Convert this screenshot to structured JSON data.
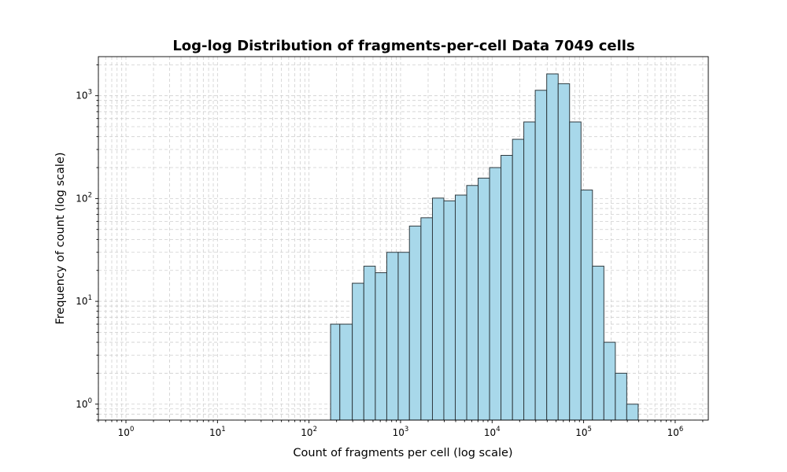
{
  "chart_data": {
    "type": "bar",
    "title": "Log-log Distribution of fragments-per-cell Data 7049 cells",
    "xlabel": "Count of fragments per cell (log scale)",
    "ylabel": "Frequency of count (log scale)",
    "xscale": "log",
    "yscale": "log",
    "xlim": [
      0.5,
      2300000
    ],
    "ylim": [
      0.7,
      2400
    ],
    "grid": true,
    "bar_color": "#a8d8ea",
    "edge_color": "#2f3a3f",
    "x_ticks": [
      {
        "value": 1,
        "base": "10",
        "exp": "0"
      },
      {
        "value": 10,
        "base": "10",
        "exp": "1"
      },
      {
        "value": 100,
        "base": "10",
        "exp": "2"
      },
      {
        "value": 1000,
        "base": "10",
        "exp": "3"
      },
      {
        "value": 10000,
        "base": "10",
        "exp": "4"
      },
      {
        "value": 100000,
        "base": "10",
        "exp": "5"
      },
      {
        "value": 1000000,
        "base": "10",
        "exp": "6"
      }
    ],
    "y_ticks": [
      {
        "value": 1,
        "base": "10",
        "exp": "0"
      },
      {
        "value": 10,
        "base": "10",
        "exp": "1"
      },
      {
        "value": 100,
        "base": "10",
        "exp": "2"
      },
      {
        "value": 1000,
        "base": "10",
        "exp": "3"
      }
    ],
    "bins": [
      {
        "x0": 172,
        "x1": 217,
        "count": 6
      },
      {
        "x0": 217,
        "x1": 297,
        "count": 6
      },
      {
        "x0": 297,
        "x1": 397,
        "count": 15
      },
      {
        "x0": 397,
        "x1": 530,
        "count": 22
      },
      {
        "x0": 530,
        "x1": 707,
        "count": 19
      },
      {
        "x0": 707,
        "x1": 942,
        "count": 30
      },
      {
        "x0": 942,
        "x1": 1250,
        "count": 30
      },
      {
        "x0": 1250,
        "x1": 1670,
        "count": 54
      },
      {
        "x0": 1670,
        "x1": 2230,
        "count": 65
      },
      {
        "x0": 2230,
        "x1": 2970,
        "count": 101
      },
      {
        "x0": 2970,
        "x1": 3960,
        "count": 95
      },
      {
        "x0": 3960,
        "x1": 5280,
        "count": 108
      },
      {
        "x0": 5280,
        "x1": 7040,
        "count": 134
      },
      {
        "x0": 7040,
        "x1": 9380,
        "count": 158
      },
      {
        "x0": 9380,
        "x1": 12500,
        "count": 200
      },
      {
        "x0": 12500,
        "x1": 16700,
        "count": 263
      },
      {
        "x0": 16700,
        "x1": 22200,
        "count": 377
      },
      {
        "x0": 22200,
        "x1": 29600,
        "count": 556
      },
      {
        "x0": 29600,
        "x1": 39500,
        "count": 1130
      },
      {
        "x0": 39500,
        "x1": 52700,
        "count": 1630
      },
      {
        "x0": 52700,
        "x1": 70200,
        "count": 1310
      },
      {
        "x0": 70200,
        "x1": 93600,
        "count": 556
      },
      {
        "x0": 93600,
        "x1": 124800,
        "count": 121
      },
      {
        "x0": 124800,
        "x1": 166400,
        "count": 22
      },
      {
        "x0": 166400,
        "x1": 221800,
        "count": 4
      },
      {
        "x0": 221800,
        "x1": 295700,
        "count": 2
      },
      {
        "x0": 295700,
        "x1": 394200,
        "count": 1
      }
    ]
  }
}
